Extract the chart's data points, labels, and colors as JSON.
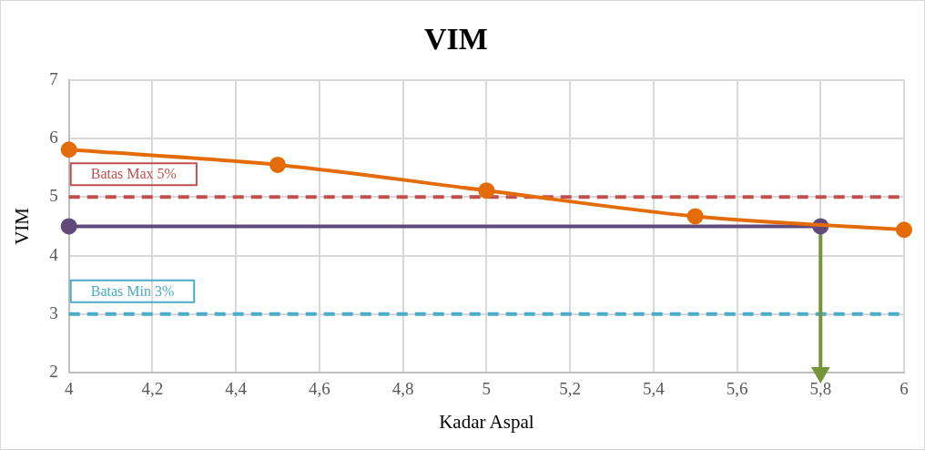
{
  "chart_data": {
    "type": "line",
    "title": "VIM",
    "xlabel": "Kadar Aspal",
    "ylabel": "VIM",
    "xlim": [
      4,
      6
    ],
    "xticks": [
      4,
      {
        "value": 4.2,
        "label": "4,2"
      },
      {
        "value": 4.4,
        "label": "4,4"
      },
      {
        "value": 4.6,
        "label": "4,6"
      },
      {
        "value": 4.8,
        "label": "4,8"
      },
      5,
      {
        "value": 5.2,
        "label": "5,2"
      },
      {
        "value": 5.4,
        "label": "5,4"
      },
      {
        "value": 5.6,
        "label": "5,6"
      },
      {
        "value": 5.8,
        "label": "5,8"
      },
      6
    ],
    "ylim": [
      2,
      7
    ],
    "yticks": [
      2,
      3,
      4,
      5,
      6,
      7
    ],
    "grid": true,
    "legend": false,
    "marker": "circle",
    "line_style": "solid",
    "series": [
      {
        "color": "#e36c09",
        "x": [
          4,
          4.5,
          5,
          5.5,
          6
        ],
        "values": [
          5.81,
          5.55,
          5.11,
          4.67,
          4.44
        ]
      },
      {
        "color": "#604a7b",
        "x": [
          4,
          5.8
        ],
        "values": [
          4.5,
          4.5
        ]
      },
      {
        "color": "#77933c",
        "x": [
          5.8,
          5.8
        ],
        "values": [
          4.5,
          2
        ],
        "marker": "triangle"
      }
    ],
    "ref_lines": [
      {
        "axis": "y",
        "value": 5,
        "label": "Batas Max 5%",
        "color": "#c0504d",
        "line_style": "dashed"
      },
      {
        "axis": "y",
        "value": 3,
        "label": "Batas Min 3%",
        "color": "#4bacc6",
        "line_style": "dashed"
      }
    ]
  }
}
